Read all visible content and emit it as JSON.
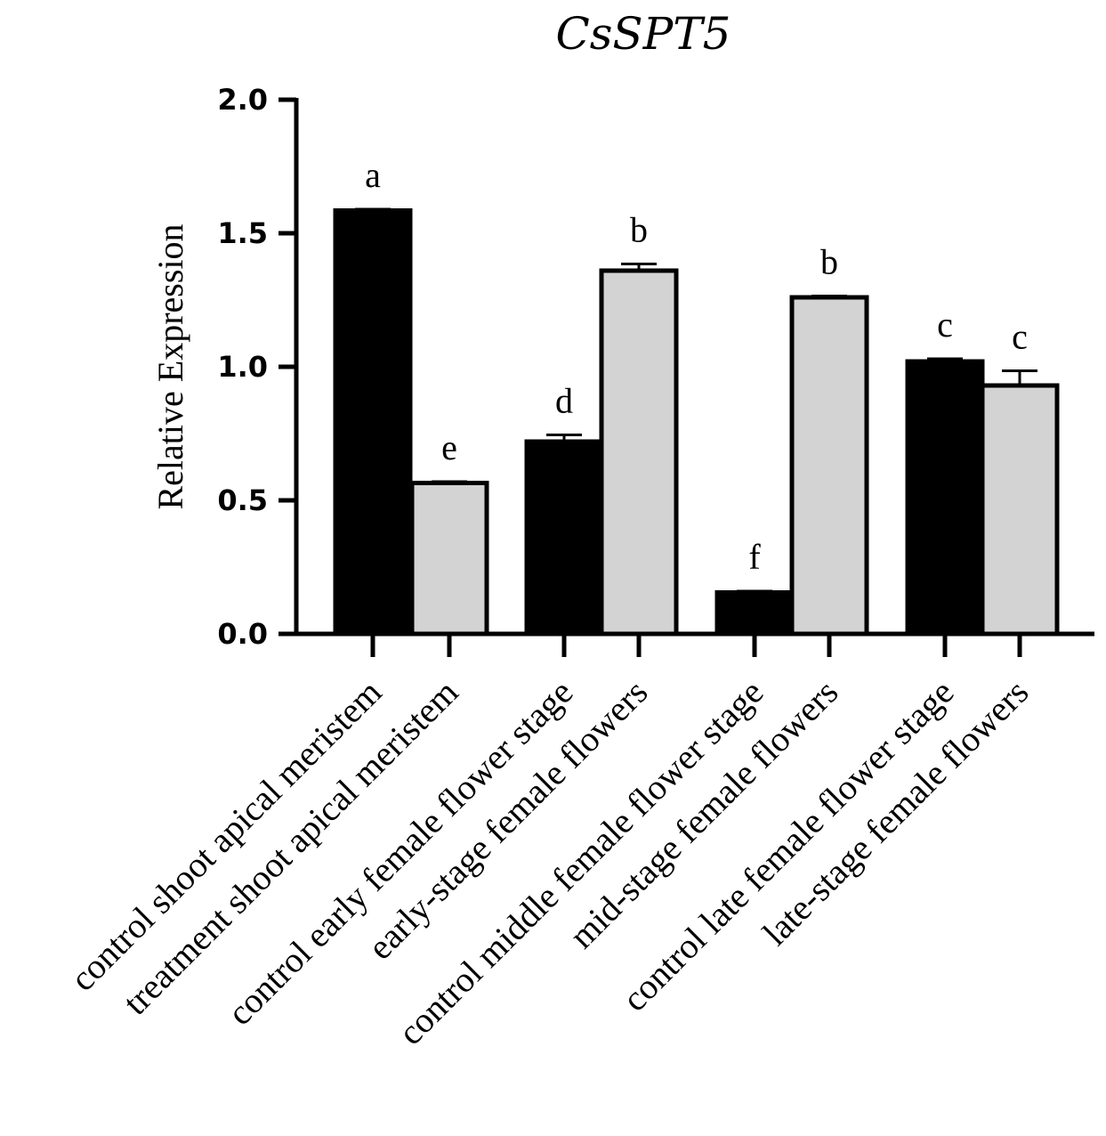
{
  "chart_data": {
    "type": "bar",
    "title": "CsSPT5",
    "ylabel": "Relative Expression",
    "xlabel": "",
    "ylim": [
      0,
      2.0
    ],
    "yticks": [
      "0.0",
      "0.5",
      "1.0",
      "1.5",
      "2.0"
    ],
    "grid": false,
    "categories": [
      "control shoot apical meristem",
      "treatment shoot apical meristem",
      "control early female flower stage",
      "early-stage female flowers",
      "control middle female flower stage",
      "mid-stage female flowers",
      "control late female flower stage",
      "late-stage female flowers"
    ],
    "values": [
      1.585,
      0.565,
      0.72,
      1.36,
      0.155,
      1.26,
      1.02,
      0.93
    ],
    "errors": [
      0.005,
      0.005,
      0.025,
      0.025,
      0.005,
      0.005,
      0.01,
      0.055
    ],
    "significance": [
      "a",
      "e",
      "d",
      "b",
      "f",
      "b",
      "c",
      "c"
    ],
    "bar_colors": [
      "#000000",
      "#d3d3d3",
      "#000000",
      "#d3d3d3",
      "#000000",
      "#d3d3d3",
      "#000000",
      "#d3d3d3"
    ]
  }
}
